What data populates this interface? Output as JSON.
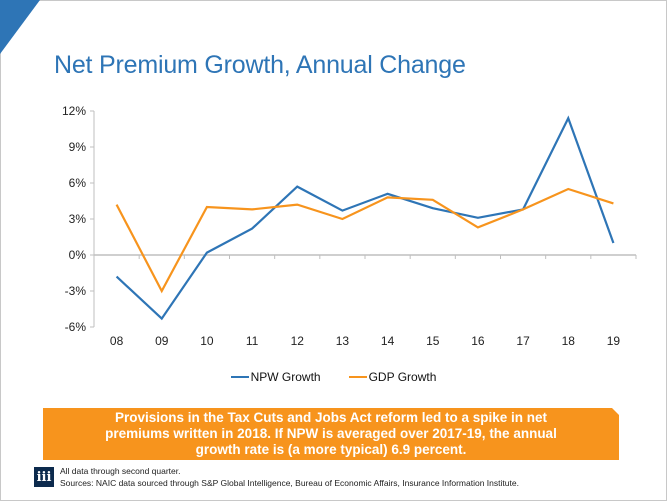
{
  "slide": {
    "title": "Net Premium Growth, Annual Change",
    "accent_color": "#2e75b6",
    "callout_color": "#f7941d",
    "callout_text": "Provisions in the Tax Cuts and Jobs Act reform led to a spike in net premiums written in 2018. If NPW is averaged over 2017-19, the annual growth rate is (a more typical) 6.9 percent.",
    "logo_text": "iii",
    "note_1": "All data through second quarter.",
    "note_2": "Sources: NAIC data sourced through S&P Global Intelligence, Bureau of Economic Affairs, Insurance Information Institute."
  },
  "chart_data": {
    "type": "line",
    "title": "Net Premium Growth, Annual Change",
    "xlabel": "",
    "ylabel": "",
    "categories": [
      "08",
      "09",
      "10",
      "11",
      "12",
      "13",
      "14",
      "15",
      "16",
      "17",
      "18",
      "19"
    ],
    "ylim": [
      -6,
      12
    ],
    "yticks": [
      12,
      9,
      6,
      3,
      0,
      -3,
      -6
    ],
    "ytick_labels": [
      "12%",
      "9%",
      "6%",
      "3%",
      "0%",
      "-3%",
      "-6%"
    ],
    "grid": false,
    "legend_position": "bottom",
    "series": [
      {
        "name": "NPW Growth",
        "color": "#2e75b6",
        "values": [
          -1.8,
          -5.3,
          0.2,
          2.2,
          5.7,
          3.7,
          5.1,
          3.9,
          3.1,
          3.8,
          11.4,
          1.0
        ]
      },
      {
        "name": "GDP Growth",
        "color": "#f7941d",
        "values": [
          4.2,
          -3.0,
          4.0,
          3.8,
          4.2,
          3.0,
          4.8,
          4.6,
          2.3,
          3.8,
          5.5,
          4.3
        ]
      }
    ]
  }
}
